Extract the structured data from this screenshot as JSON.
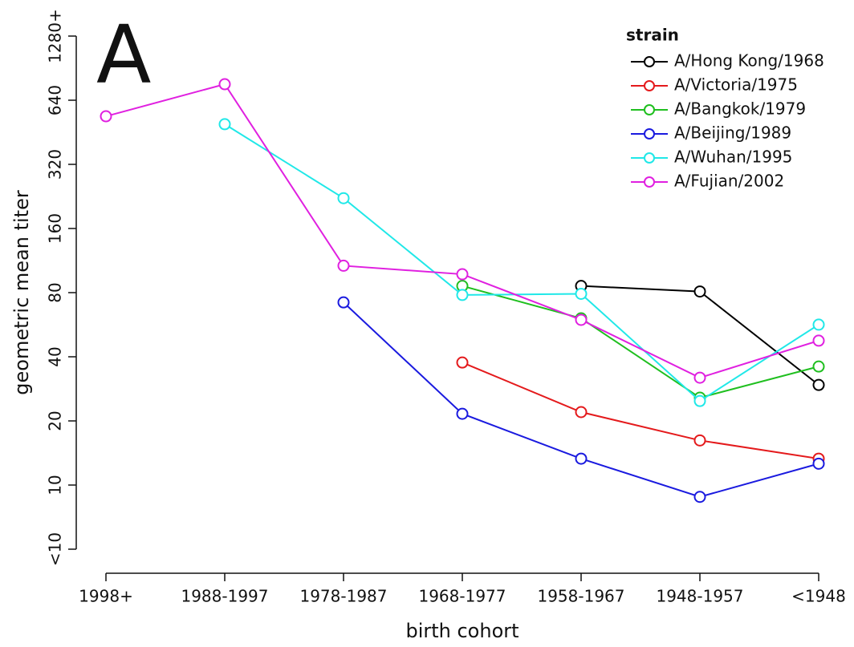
{
  "chart_data": {
    "type": "line",
    "panel_label": "A",
    "xlabel": "birth cohort",
    "ylabel": "geometric mean titer",
    "categories": [
      "1998+",
      "1988-1997",
      "1978-1987",
      "1968-1977",
      "1958-1967",
      "1948-1957",
      "<1948"
    ],
    "log_scale": true,
    "ylim": [
      5,
      1280
    ],
    "yticks": [
      {
        "value": 5,
        "label": "<10"
      },
      10,
      20,
      40,
      80,
      160,
      320,
      640,
      {
        "value": 1280,
        "label": "1280+"
      }
    ],
    "legend_title": "strain",
    "legend": "top-right",
    "series": [
      {
        "name": "A/Hong Kong/1968",
        "color": "#000000",
        "values": [
          null,
          null,
          null,
          null,
          86,
          81,
          29.5
        ]
      },
      {
        "name": "A/Victoria/1975",
        "color": "#e41a1c",
        "values": [
          null,
          null,
          null,
          37.6,
          22,
          16.2,
          13.3
        ]
      },
      {
        "name": "A/Bangkok/1979",
        "color": "#1fbf1f",
        "values": [
          null,
          null,
          null,
          86,
          60.6,
          25.7,
          36
        ]
      },
      {
        "name": "A/Beijing/1989",
        "color": "#1a1adf",
        "values": [
          null,
          null,
          72,
          21.6,
          13.3,
          8.8,
          12.6
        ]
      },
      {
        "name": "A/Wuhan/1995",
        "color": "#20e8e8",
        "values": [
          null,
          494,
          222,
          78,
          79,
          24.8,
          56.6
        ]
      },
      {
        "name": "A/Fujian/2002",
        "color": "#e020e0",
        "values": [
          538,
          761,
          107,
          97.6,
          59.6,
          31.9,
          47.6
        ]
      }
    ]
  }
}
